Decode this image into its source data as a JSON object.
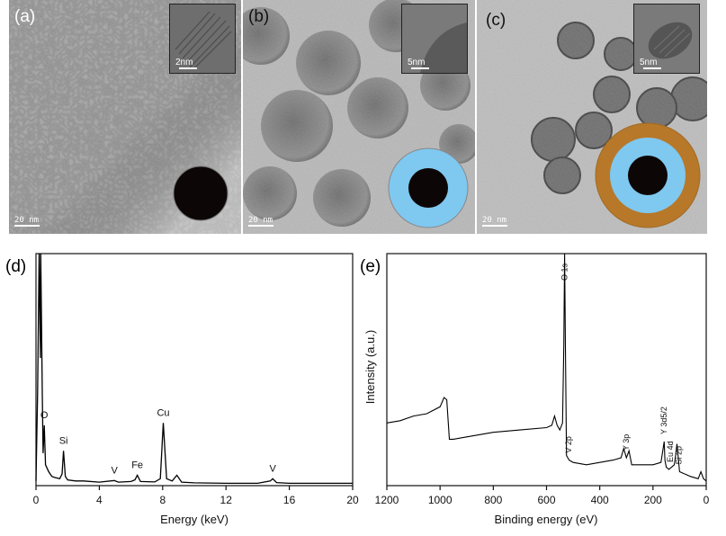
{
  "panels": {
    "a": {
      "label": "(a)",
      "scale": "20 nm",
      "inset_scale": "2nm"
    },
    "b": {
      "label": "(b)",
      "scale": "20 nm",
      "inset_scale": "5nm"
    },
    "c": {
      "label": "(c)",
      "scale": "20 nm",
      "inset_scale": "5nm"
    },
    "d": {
      "label": "(d)"
    },
    "e": {
      "label": "(e)"
    }
  },
  "colors": {
    "core": "#0d0606",
    "shell_silica": "#7fc8f0",
    "shell_vanadate": "#b7782a",
    "tem_background": "#9c9c9c"
  },
  "chart_data": [
    {
      "panel": "d",
      "type": "line",
      "xlabel": "Energy (keV)",
      "ylabel": "",
      "xlim": [
        0,
        20
      ],
      "xticks": [
        0,
        4,
        8,
        12,
        16,
        20
      ],
      "ylim": [
        0,
        100
      ],
      "x": [
        0,
        0.1,
        0.2,
        0.28,
        0.3,
        0.4,
        0.45,
        0.52,
        0.6,
        0.8,
        1.0,
        1.2,
        1.5,
        1.65,
        1.74,
        1.85,
        2.0,
        2.5,
        3.0,
        4.0,
        4.95,
        5.2,
        6.0,
        6.25,
        6.4,
        6.6,
        7.5,
        7.85,
        8.04,
        8.25,
        8.6,
        8.9,
        9.2,
        10,
        12,
        14,
        14.8,
        14.95,
        15.2,
        16,
        18,
        20
      ],
      "y": [
        2,
        40,
        100,
        55,
        100,
        40,
        14,
        26,
        9,
        6,
        4,
        3.5,
        3,
        5,
        15,
        4,
        2.5,
        2,
        2,
        1.5,
        2.2,
        1.5,
        1.8,
        2.5,
        4.5,
        1.8,
        1.6,
        3,
        27,
        3,
        2,
        4.5,
        1.5,
        1.2,
        1,
        1,
        2,
        3,
        1.3,
        1,
        1,
        1
      ],
      "peaks": [
        {
          "label": "O",
          "x": 0.52
        },
        {
          "label": "Si",
          "x": 1.74
        },
        {
          "label": "V",
          "x": 4.95
        },
        {
          "label": "Fe",
          "x": 6.4
        },
        {
          "label": "Cu",
          "x": 8.04
        },
        {
          "label": "V",
          "x": 14.95
        }
      ]
    },
    {
      "panel": "e",
      "type": "line",
      "xlabel": "Binding energy (eV)",
      "ylabel": "Intensity (a.u.)",
      "xlim": [
        1200,
        0
      ],
      "xticks": [
        1200,
        1000,
        800,
        600,
        400,
        200,
        0
      ],
      "ylim": [
        0,
        100
      ],
      "x": [
        1200,
        1150,
        1100,
        1050,
        1000,
        985,
        975,
        965,
        950,
        900,
        800,
        700,
        600,
        580,
        570,
        560,
        550,
        540,
        535,
        532,
        529,
        525,
        515,
        500,
        450,
        400,
        350,
        320,
        310,
        300,
        290,
        280,
        250,
        200,
        170,
        158,
        155,
        150,
        140,
        130,
        120,
        115,
        110,
        100,
        60,
        30,
        20,
        10,
        0
      ],
      "y": [
        27,
        28,
        30,
        31,
        34,
        38,
        37,
        20,
        20,
        21,
        23,
        24,
        25,
        26,
        30,
        26,
        24,
        27,
        60,
        100,
        60,
        13,
        11,
        10,
        9,
        10,
        11,
        12,
        16,
        12,
        15,
        9,
        9,
        9,
        10,
        19,
        11,
        8,
        7,
        8,
        9,
        13,
        18,
        6,
        4,
        3,
        6,
        3,
        2
      ],
      "peaks": [
        {
          "label": "O 1s",
          "x": 532
        },
        {
          "label": "V 2p",
          "x": 517
        },
        {
          "label": "Y 3p",
          "x": 300
        },
        {
          "label": "Y 3d5/2",
          "x": 158
        },
        {
          "label": "Eu 4d",
          "x": 136
        },
        {
          "label": "Si 2p",
          "x": 103
        }
      ]
    }
  ]
}
